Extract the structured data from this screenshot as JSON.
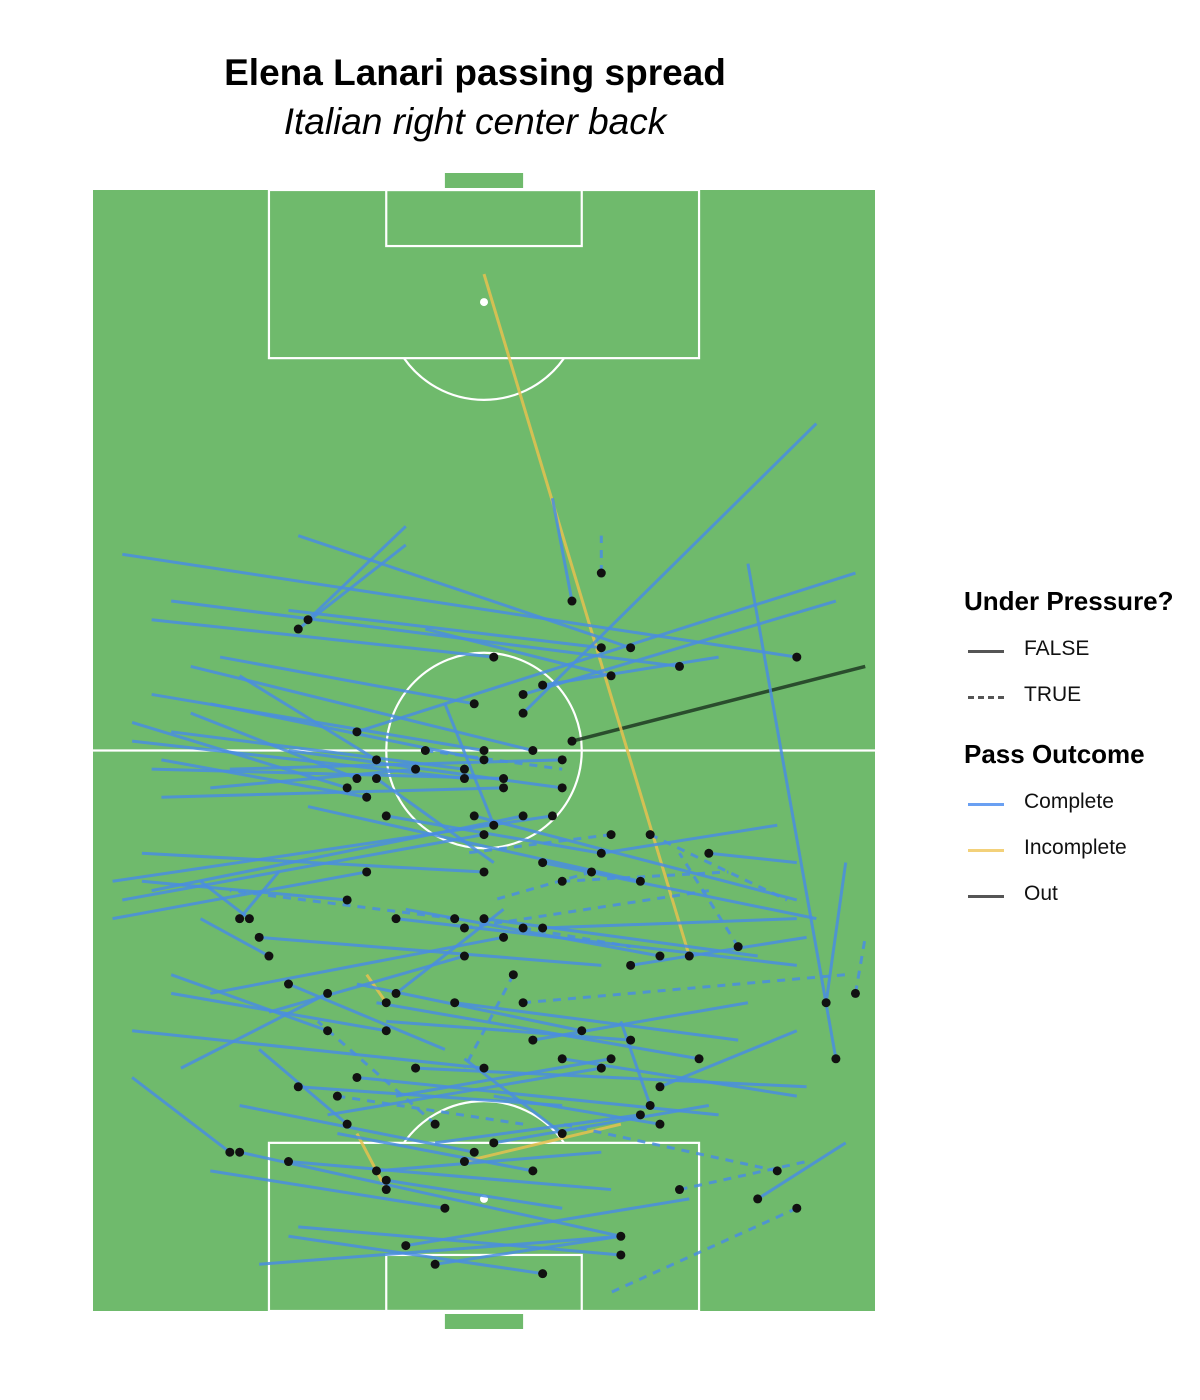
{
  "title": "Elena Lanari passing spread",
  "subtitle": "Italian right center back",
  "legend": {
    "pressure_title": "Under Pressure?",
    "pressure_items": [
      {
        "label": "FALSE",
        "dash": "solid"
      },
      {
        "label": "TRUE",
        "dash": "dashed"
      }
    ],
    "outcome_title": "Pass Outcome",
    "outcome_items": [
      {
        "label": "Complete",
        "color": "#6aa0f2"
      },
      {
        "label": "Incomplete",
        "color": "#f3d17a"
      },
      {
        "label": "Out",
        "color": "#555555"
      }
    ]
  },
  "colors": {
    "pitch": "#6fba6c",
    "lines": "#ffffff",
    "complete": "#4a8de0",
    "incomplete": "#e6c14f",
    "out": "#1f3a22",
    "point": "#111111"
  },
  "chart_data": {
    "type": "scatter",
    "title": "Elena Lanari passing spread",
    "subtitle": "Italian right center back",
    "pitch_dimensions": {
      "length": 120,
      "width": 80
    },
    "orientation": "vertical, attacking toward top",
    "x_desc": "across the pitch",
    "y_desc": "along the pitch",
    "xlim": [
      0,
      80
    ],
    "ylim": [
      0,
      120
    ],
    "legend_position": "right",
    "passes": [
      {
        "x": 49,
        "y": 61,
        "end_x": 79,
        "end_y": 69,
        "outcome": "Out",
        "pressure": false
      },
      {
        "x": 61,
        "y": 38,
        "end_x": 40,
        "end_y": 111,
        "outcome": "Incomplete",
        "pressure": false
      },
      {
        "x": 38,
        "y": 16,
        "end_x": 54,
        "end_y": 20,
        "outcome": "Incomplete",
        "pressure": false
      },
      {
        "x": 30,
        "y": 13,
        "end_x": 27,
        "end_y": 19,
        "outcome": "Incomplete",
        "pressure": false
      },
      {
        "x": 30,
        "y": 33,
        "end_x": 28,
        "end_y": 36,
        "outcome": "Incomplete",
        "pressure": false
      },
      {
        "x": 49,
        "y": 76,
        "end_x": 47,
        "end_y": 87,
        "outcome": "Complete",
        "pressure": false
      },
      {
        "x": 52,
        "y": 79,
        "end_x": 52,
        "end_y": 83,
        "outcome": "Complete",
        "pressure": true
      },
      {
        "x": 22,
        "y": 74,
        "end_x": 32,
        "end_y": 84,
        "outcome": "Complete",
        "pressure": false
      },
      {
        "x": 44,
        "y": 64,
        "end_x": 74,
        "end_y": 95,
        "outcome": "Complete",
        "pressure": false
      },
      {
        "x": 72,
        "y": 70,
        "end_x": 3,
        "end_y": 81,
        "outcome": "Complete",
        "pressure": false
      },
      {
        "x": 55,
        "y": 71,
        "end_x": 21,
        "end_y": 83,
        "outcome": "Complete",
        "pressure": false
      },
      {
        "x": 41,
        "y": 70,
        "end_x": 6,
        "end_y": 74,
        "outcome": "Complete",
        "pressure": false
      },
      {
        "x": 60,
        "y": 69,
        "end_x": 8,
        "end_y": 76,
        "outcome": "Complete",
        "pressure": false
      },
      {
        "x": 44,
        "y": 66,
        "end_x": 76,
        "end_y": 76,
        "outcome": "Complete",
        "pressure": false
      },
      {
        "x": 46,
        "y": 67,
        "end_x": 64,
        "end_y": 70,
        "outcome": "Complete",
        "pressure": false
      },
      {
        "x": 39,
        "y": 65,
        "end_x": 13,
        "end_y": 70,
        "outcome": "Complete",
        "pressure": false
      },
      {
        "x": 52,
        "y": 71,
        "end_x": 20,
        "end_y": 75,
        "outcome": "Complete",
        "pressure": false
      },
      {
        "x": 27,
        "y": 62,
        "end_x": 78,
        "end_y": 79,
        "outcome": "Complete",
        "pressure": false
      },
      {
        "x": 29,
        "y": 59,
        "end_x": 15,
        "end_y": 68,
        "outcome": "Complete",
        "pressure": false
      },
      {
        "x": 40,
        "y": 59,
        "end_x": 12,
        "end_y": 65,
        "outcome": "Complete",
        "pressure": false
      },
      {
        "x": 45,
        "y": 60,
        "end_x": 10,
        "end_y": 69,
        "outcome": "Complete",
        "pressure": false
      },
      {
        "x": 38,
        "y": 58,
        "end_x": 8,
        "end_y": 62,
        "outcome": "Complete",
        "pressure": false
      },
      {
        "x": 40,
        "y": 60,
        "end_x": 6,
        "end_y": 66,
        "outcome": "Complete",
        "pressure": false
      },
      {
        "x": 48,
        "y": 59,
        "end_x": 14,
        "end_y": 58,
        "outcome": "Complete",
        "pressure": false
      },
      {
        "x": 42,
        "y": 57,
        "end_x": 6,
        "end_y": 58,
        "outcome": "Complete",
        "pressure": false
      },
      {
        "x": 38,
        "y": 57,
        "end_x": 4,
        "end_y": 61,
        "outcome": "Complete",
        "pressure": false
      },
      {
        "x": 27,
        "y": 57,
        "end_x": 10,
        "end_y": 64,
        "outcome": "Complete",
        "pressure": false
      },
      {
        "x": 26,
        "y": 56,
        "end_x": 4,
        "end_y": 63,
        "outcome": "Complete",
        "pressure": false
      },
      {
        "x": 28,
        "y": 55,
        "end_x": 7,
        "end_y": 59,
        "outcome": "Complete",
        "pressure": false
      },
      {
        "x": 33,
        "y": 58,
        "end_x": 12,
        "end_y": 56,
        "outcome": "Complete",
        "pressure": false
      },
      {
        "x": 48,
        "y": 56,
        "end_x": 20,
        "end_y": 60,
        "outcome": "Complete",
        "pressure": false
      },
      {
        "x": 42,
        "y": 56,
        "end_x": 7,
        "end_y": 55,
        "outcome": "Complete",
        "pressure": false
      },
      {
        "x": 47,
        "y": 53,
        "end_x": 2,
        "end_y": 46,
        "outcome": "Complete",
        "pressure": false
      },
      {
        "x": 44,
        "y": 53,
        "end_x": 6,
        "end_y": 45,
        "outcome": "Complete",
        "pressure": false
      },
      {
        "x": 40,
        "y": 51,
        "end_x": 3,
        "end_y": 44,
        "outcome": "Complete",
        "pressure": false
      },
      {
        "x": 41,
        "y": 52,
        "end_x": 36,
        "end_y": 65,
        "outcome": "Complete",
        "pressure": false
      },
      {
        "x": 39,
        "y": 53,
        "end_x": 72,
        "end_y": 44,
        "outcome": "Complete",
        "pressure": false
      },
      {
        "x": 29,
        "y": 57,
        "end_x": 41,
        "end_y": 48,
        "outcome": "Complete",
        "pressure": false
      },
      {
        "x": 53,
        "y": 51,
        "end_x": 38,
        "end_y": 49,
        "outcome": "Complete",
        "pressure": true
      },
      {
        "x": 57,
        "y": 51,
        "end_x": 71,
        "end_y": 44,
        "outcome": "Complete",
        "pressure": true
      },
      {
        "x": 63,
        "y": 49,
        "end_x": 72,
        "end_y": 48,
        "outcome": "Complete",
        "pressure": false
      },
      {
        "x": 52,
        "y": 49,
        "end_x": 70,
        "end_y": 52,
        "outcome": "Complete",
        "pressure": false
      },
      {
        "x": 46,
        "y": 48,
        "end_x": 74,
        "end_y": 42,
        "outcome": "Complete",
        "pressure": false
      },
      {
        "x": 51,
        "y": 47,
        "end_x": 41,
        "end_y": 44,
        "outcome": "Complete",
        "pressure": true
      },
      {
        "x": 48,
        "y": 46,
        "end_x": 65,
        "end_y": 47,
        "outcome": "Complete",
        "pressure": true
      },
      {
        "x": 56,
        "y": 46,
        "end_x": 22,
        "end_y": 54,
        "outcome": "Complete",
        "pressure": false
      },
      {
        "x": 40,
        "y": 47,
        "end_x": 5,
        "end_y": 49,
        "outcome": "Complete",
        "pressure": false
      },
      {
        "x": 28,
        "y": 47,
        "end_x": 2,
        "end_y": 42,
        "outcome": "Complete",
        "pressure": false
      },
      {
        "x": 26,
        "y": 44,
        "end_x": 5,
        "end_y": 46,
        "outcome": "Complete",
        "pressure": false
      },
      {
        "x": 15,
        "y": 42,
        "end_x": 19,
        "end_y": 47,
        "outcome": "Complete",
        "pressure": false
      },
      {
        "x": 17,
        "y": 40,
        "end_x": 52,
        "end_y": 37,
        "outcome": "Complete",
        "pressure": false
      },
      {
        "x": 31,
        "y": 42,
        "end_x": 72,
        "end_y": 37,
        "outcome": "Complete",
        "pressure": false
      },
      {
        "x": 38,
        "y": 41,
        "end_x": 63,
        "end_y": 45,
        "outcome": "Complete",
        "pressure": true
      },
      {
        "x": 40,
        "y": 42,
        "end_x": 68,
        "end_y": 38,
        "outcome": "Complete",
        "pressure": false
      },
      {
        "x": 44,
        "y": 41,
        "end_x": 55,
        "end_y": 39,
        "outcome": "Complete",
        "pressure": true
      },
      {
        "x": 46,
        "y": 41,
        "end_x": 72,
        "end_y": 42,
        "outcome": "Complete",
        "pressure": false
      },
      {
        "x": 42,
        "y": 40,
        "end_x": 12,
        "end_y": 34,
        "outcome": "Complete",
        "pressure": false
      },
      {
        "x": 38,
        "y": 38,
        "end_x": 18,
        "end_y": 32,
        "outcome": "Complete",
        "pressure": false
      },
      {
        "x": 20,
        "y": 35,
        "end_x": 36,
        "end_y": 28,
        "outcome": "Complete",
        "pressure": false
      },
      {
        "x": 24,
        "y": 34,
        "end_x": 9,
        "end_y": 26,
        "outcome": "Complete",
        "pressure": false
      },
      {
        "x": 30,
        "y": 30,
        "end_x": 8,
        "end_y": 34,
        "outcome": "Complete",
        "pressure": false
      },
      {
        "x": 37,
        "y": 33,
        "end_x": 66,
        "end_y": 29,
        "outcome": "Complete",
        "pressure": false
      },
      {
        "x": 44,
        "y": 33,
        "end_x": 77,
        "end_y": 36,
        "outcome": "Complete",
        "pressure": true
      },
      {
        "x": 45,
        "y": 29,
        "end_x": 67,
        "end_y": 33,
        "outcome": "Complete",
        "pressure": false
      },
      {
        "x": 53,
        "y": 27,
        "end_x": 31,
        "end_y": 23,
        "outcome": "Complete",
        "pressure": false
      },
      {
        "x": 52,
        "y": 26,
        "end_x": 24,
        "end_y": 21,
        "outcome": "Complete",
        "pressure": false
      },
      {
        "x": 48,
        "y": 27,
        "end_x": 72,
        "end_y": 23,
        "outcome": "Complete",
        "pressure": false
      },
      {
        "x": 40,
        "y": 26,
        "end_x": 4,
        "end_y": 30,
        "outcome": "Complete",
        "pressure": false
      },
      {
        "x": 33,
        "y": 26,
        "end_x": 73,
        "end_y": 24,
        "outcome": "Complete",
        "pressure": false
      },
      {
        "x": 27,
        "y": 25,
        "end_x": 64,
        "end_y": 21,
        "outcome": "Complete",
        "pressure": false
      },
      {
        "x": 21,
        "y": 24,
        "end_x": 48,
        "end_y": 22,
        "outcome": "Complete",
        "pressure": false
      },
      {
        "x": 25,
        "y": 23,
        "end_x": 44,
        "end_y": 20,
        "outcome": "Complete",
        "pressure": true
      },
      {
        "x": 56,
        "y": 21,
        "end_x": 35,
        "end_y": 18,
        "outcome": "Complete",
        "pressure": false
      },
      {
        "x": 41,
        "y": 18,
        "end_x": 63,
        "end_y": 22,
        "outcome": "Complete",
        "pressure": false
      },
      {
        "x": 39,
        "y": 17,
        "end_x": 15,
        "end_y": 22,
        "outcome": "Complete",
        "pressure": false
      },
      {
        "x": 29,
        "y": 15,
        "end_x": 52,
        "end_y": 17,
        "outcome": "Complete",
        "pressure": false
      },
      {
        "x": 20,
        "y": 16,
        "end_x": 53,
        "end_y": 13,
        "outcome": "Complete",
        "pressure": false
      },
      {
        "x": 15,
        "y": 17,
        "end_x": 54,
        "end_y": 8,
        "outcome": "Complete",
        "pressure": false
      },
      {
        "x": 30,
        "y": 14,
        "end_x": 48,
        "end_y": 11,
        "outcome": "Complete",
        "pressure": false
      },
      {
        "x": 32,
        "y": 7,
        "end_x": 61,
        "end_y": 12,
        "outcome": "Complete",
        "pressure": false
      },
      {
        "x": 35,
        "y": 5,
        "end_x": 54,
        "end_y": 8,
        "outcome": "Complete",
        "pressure": false
      },
      {
        "x": 46,
        "y": 4,
        "end_x": 20,
        "end_y": 8,
        "outcome": "Complete",
        "pressure": false
      },
      {
        "x": 54,
        "y": 8,
        "end_x": 17,
        "end_y": 5,
        "outcome": "Complete",
        "pressure": false
      },
      {
        "x": 60,
        "y": 13,
        "end_x": 73,
        "end_y": 16,
        "outcome": "Complete",
        "pressure": true
      },
      {
        "x": 68,
        "y": 12,
        "end_x": 77,
        "end_y": 18,
        "outcome": "Complete",
        "pressure": false
      },
      {
        "x": 70,
        "y": 15,
        "end_x": 48,
        "end_y": 20,
        "outcome": "Complete",
        "pressure": true
      },
      {
        "x": 72,
        "y": 11,
        "end_x": 53,
        "end_y": 2,
        "outcome": "Complete",
        "pressure": true
      },
      {
        "x": 75,
        "y": 33,
        "end_x": 77,
        "end_y": 48,
        "outcome": "Complete",
        "pressure": false
      },
      {
        "x": 78,
        "y": 34,
        "end_x": 79,
        "end_y": 40,
        "outcome": "Complete",
        "pressure": true
      },
      {
        "x": 76,
        "y": 27,
        "end_x": 67,
        "end_y": 80,
        "outcome": "Complete",
        "pressure": false
      },
      {
        "x": 14,
        "y": 17,
        "end_x": 4,
        "end_y": 25,
        "outcome": "Complete",
        "pressure": false
      },
      {
        "x": 21,
        "y": 73,
        "end_x": 32,
        "end_y": 82,
        "outcome": "Complete",
        "pressure": false
      },
      {
        "x": 37,
        "y": 42,
        "end_x": 14,
        "end_y": 45,
        "outcome": "Complete",
        "pressure": true
      },
      {
        "x": 30,
        "y": 53,
        "end_x": 52,
        "end_y": 49,
        "outcome": "Complete",
        "pressure": false
      },
      {
        "x": 18,
        "y": 38,
        "end_x": 11,
        "end_y": 42,
        "outcome": "Complete",
        "pressure": false
      },
      {
        "x": 43,
        "y": 36,
        "end_x": 38,
        "end_y": 26,
        "outcome": "Complete",
        "pressure": true
      },
      {
        "x": 55,
        "y": 37,
        "end_x": 73,
        "end_y": 40,
        "outcome": "Complete",
        "pressure": false
      },
      {
        "x": 58,
        "y": 38,
        "end_x": 32,
        "end_y": 43,
        "outcome": "Complete",
        "pressure": false
      },
      {
        "x": 24,
        "y": 30,
        "end_x": 8,
        "end_y": 36,
        "outcome": "Complete",
        "pressure": false
      },
      {
        "x": 26,
        "y": 20,
        "end_x": 17,
        "end_y": 28,
        "outcome": "Complete",
        "pressure": false
      },
      {
        "x": 35,
        "y": 20,
        "end_x": 23,
        "end_y": 31,
        "outcome": "Complete",
        "pressure": true
      },
      {
        "x": 50,
        "y": 30,
        "end_x": 27,
        "end_y": 35,
        "outcome": "Complete",
        "pressure": false
      },
      {
        "x": 55,
        "y": 29,
        "end_x": 30,
        "end_y": 31,
        "outcome": "Complete",
        "pressure": false
      },
      {
        "x": 62,
        "y": 27,
        "end_x": 29,
        "end_y": 33,
        "outcome": "Complete",
        "pressure": false
      },
      {
        "x": 58,
        "y": 24,
        "end_x": 72,
        "end_y": 30,
        "outcome": "Complete",
        "pressure": false
      },
      {
        "x": 57,
        "y": 22,
        "end_x": 54,
        "end_y": 31,
        "outcome": "Complete",
        "pressure": false
      },
      {
        "x": 58,
        "y": 20,
        "end_x": 41,
        "end_y": 23,
        "outcome": "Complete",
        "pressure": false
      },
      {
        "x": 45,
        "y": 15,
        "end_x": 25,
        "end_y": 19,
        "outcome": "Complete",
        "pressure": false
      },
      {
        "x": 36,
        "y": 11,
        "end_x": 12,
        "end_y": 15,
        "outcome": "Complete",
        "pressure": false
      },
      {
        "x": 54,
        "y": 6,
        "end_x": 21,
        "end_y": 9,
        "outcome": "Complete",
        "pressure": false
      },
      {
        "x": 31,
        "y": 34,
        "end_x": 42,
        "end_y": 43,
        "outcome": "Complete",
        "pressure": false
      },
      {
        "x": 48,
        "y": 19,
        "end_x": 38,
        "end_y": 27,
        "outcome": "Complete",
        "pressure": false
      },
      {
        "x": 66,
        "y": 39,
        "end_x": 60,
        "end_y": 49,
        "outcome": "Complete",
        "pressure": true
      },
      {
        "x": 16,
        "y": 42,
        "end_x": 11,
        "end_y": 46,
        "outcome": "Complete",
        "pressure": false
      },
      {
        "x": 53,
        "y": 68,
        "end_x": 34,
        "end_y": 73,
        "outcome": "Complete",
        "pressure": false
      },
      {
        "x": 34,
        "y": 60,
        "end_x": 48,
        "end_y": 58,
        "outcome": "Complete",
        "pressure": true
      }
    ]
  }
}
